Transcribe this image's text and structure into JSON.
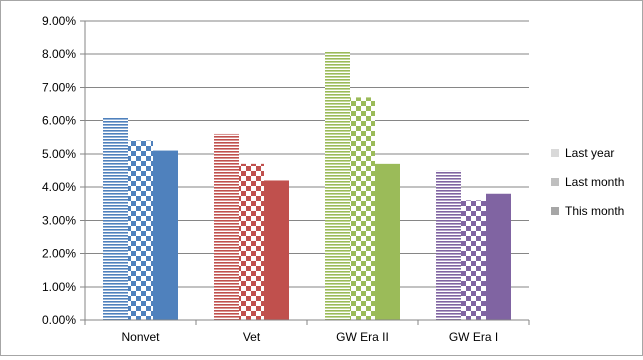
{
  "chart_data": {
    "type": "bar",
    "categories": [
      "Nonvet",
      "Vet",
      "GW Era II",
      "GW Era I"
    ],
    "series": [
      {
        "name": "Last year",
        "values": [
          6.1,
          5.6,
          8.1,
          4.5
        ]
      },
      {
        "name": "Last month",
        "values": [
          5.4,
          4.7,
          6.7,
          3.6
        ]
      },
      {
        "name": "This month",
        "values": [
          5.1,
          4.2,
          4.7,
          3.8
        ]
      }
    ],
    "series_patterns": [
      "horizontal-stripes",
      "checkerboard",
      "solid"
    ],
    "category_colors": [
      "#4f81bd",
      "#c0504d",
      "#9bbb59",
      "#8064a2"
    ],
    "legend_swatch_colors": [
      "#d9d9d9",
      "#bfbfbf",
      "#a6a6a6"
    ],
    "yaxis": {
      "ylim": [
        0,
        9
      ],
      "ticks": [
        0,
        1,
        2,
        3,
        4,
        5,
        6,
        7,
        8,
        9
      ],
      "tick_labels": [
        "0.00%",
        "1.00%",
        "2.00%",
        "3.00%",
        "4.00%",
        "5.00%",
        "6.00%",
        "7.00%",
        "8.00%",
        "9.00%"
      ]
    },
    "grid": true,
    "legend_position": "right",
    "title": "",
    "xlabel": "",
    "ylabel": ""
  }
}
